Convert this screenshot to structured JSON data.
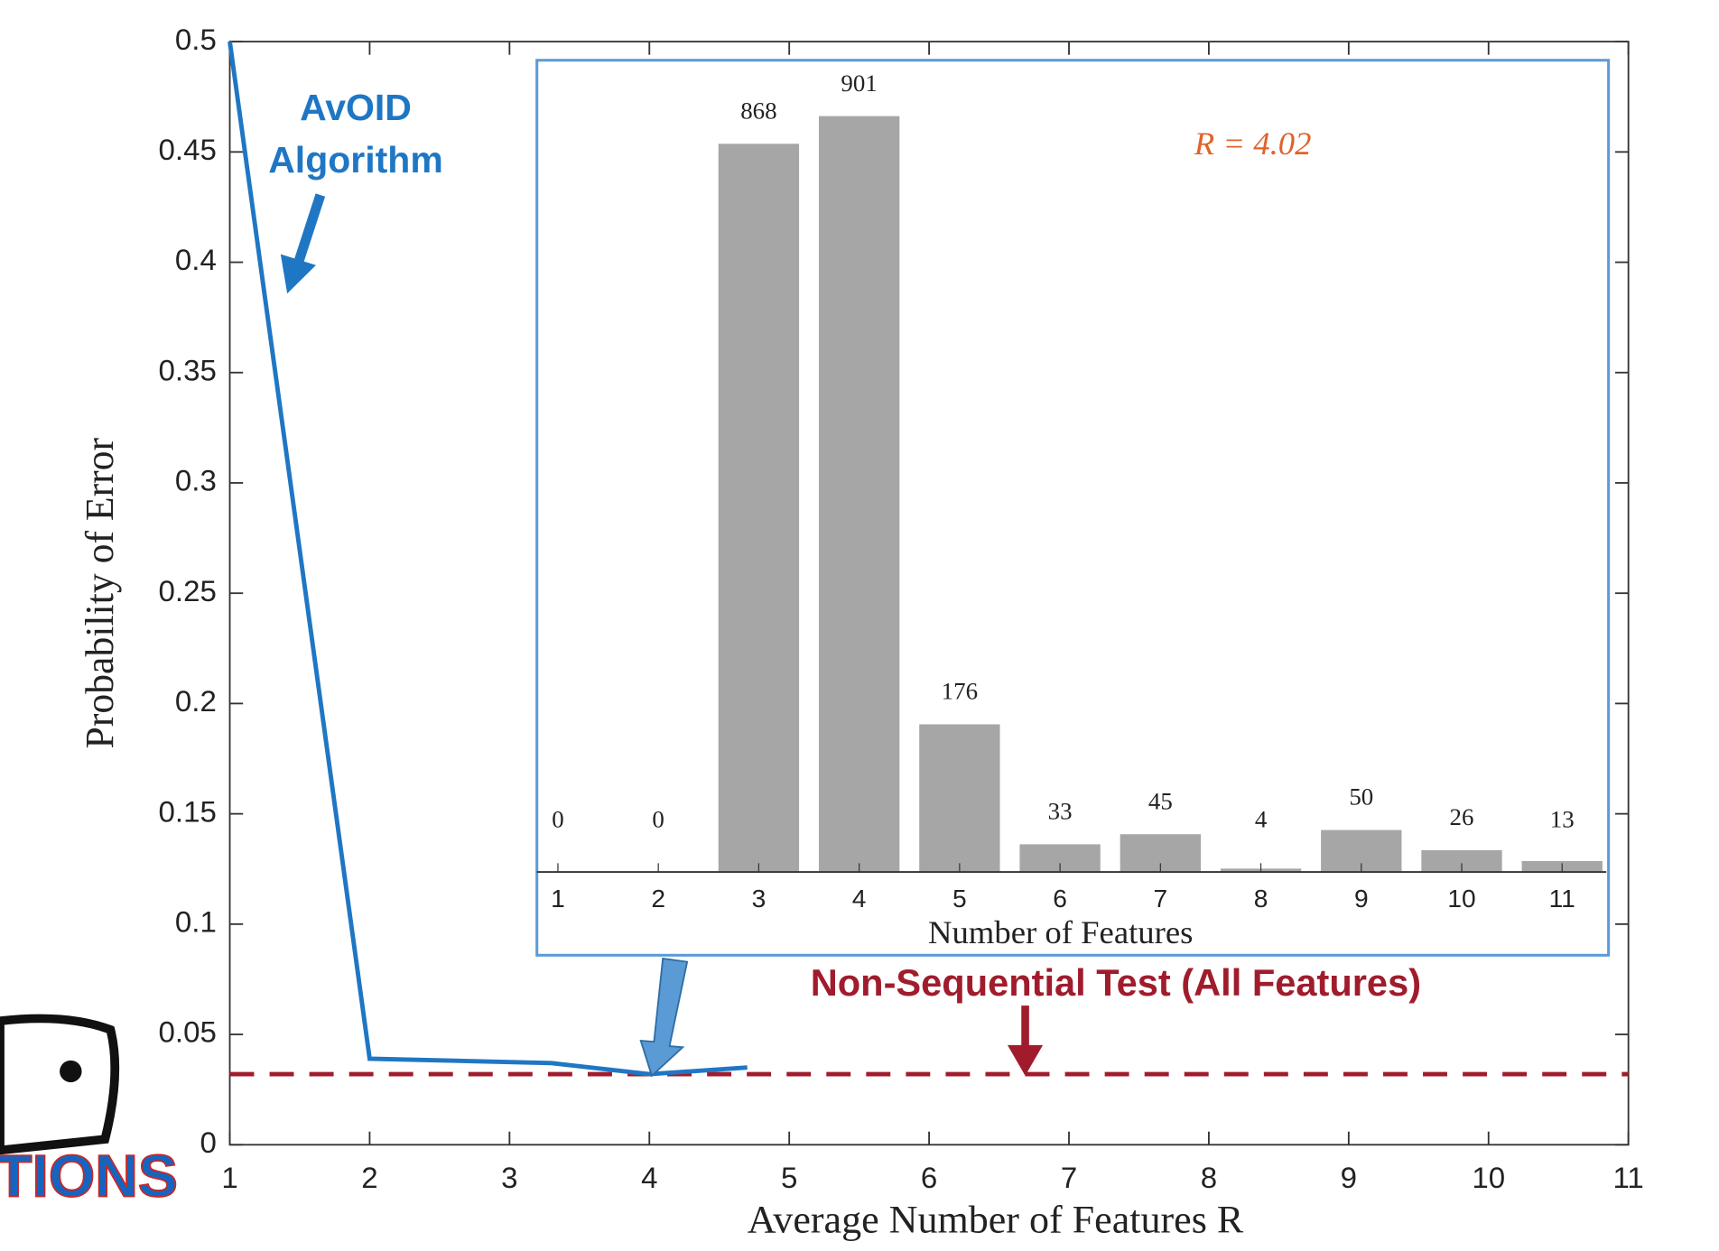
{
  "chart_data": [
    {
      "type": "line",
      "x_label": "Average Number of Features R",
      "y_label": "Probability of Error",
      "xlim": [
        1,
        11
      ],
      "xticks": [
        1,
        2,
        3,
        4,
        5,
        6,
        7,
        8,
        9,
        10,
        11
      ],
      "ylim": [
        0,
        0.5
      ],
      "yticks": [
        0,
        0.05,
        0.1,
        0.15,
        0.2,
        0.25,
        0.3,
        0.35,
        0.4,
        0.45,
        0.5
      ],
      "series": [
        {
          "name": "AvOID Algorithm",
          "color": "#1f77c4",
          "x": [
            1,
            2,
            3.3,
            4,
            4.7
          ],
          "values": [
            0.5,
            0.039,
            0.037,
            0.032,
            0.035
          ]
        }
      ],
      "reference_line": {
        "name": "Non-Sequential Test (All Features)",
        "value": 0.032,
        "color": "#a01c2c"
      }
    },
    {
      "type": "bar",
      "x_label": "Number of Features",
      "annotation": "R = 4.02",
      "categories": [
        "1",
        "2",
        "3",
        "4",
        "5",
        "6",
        "7",
        "8",
        "9",
        "10",
        "11"
      ],
      "values": [
        0,
        0,
        868,
        901,
        176,
        33,
        45,
        4,
        50,
        26,
        13
      ],
      "color": "#a6a6a6"
    }
  ],
  "logo_text": "TIONS"
}
